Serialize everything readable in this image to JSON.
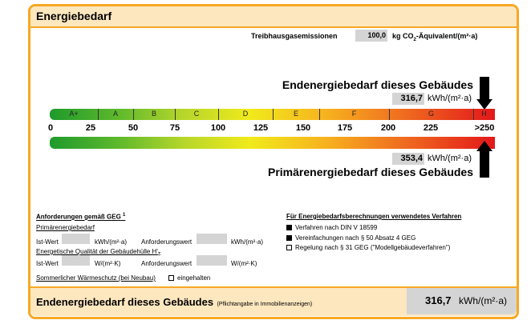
{
  "header": {
    "title": "Energiebedarf"
  },
  "emissions": {
    "label": "Treibhausgasemissionen",
    "value": "100,0",
    "unit": "kg CO",
    "unit_sub": "2",
    "unit_rest": "-Äquivalent/(m²·a)"
  },
  "end_energy": {
    "title": "Endenergiebedarf dieses Gebäudes",
    "value": "316,7",
    "unit": "kWh/(m²·a)"
  },
  "scale": {
    "classes": [
      "A+",
      "A",
      "B",
      "C",
      "D",
      "E",
      "F",
      "G",
      "H"
    ],
    "ticks": [
      "0",
      "25",
      "50",
      "75",
      "100",
      "125",
      "150",
      "175",
      "200",
      "225",
      ">250"
    ]
  },
  "primary_energy": {
    "value": "353,4",
    "unit": "kWh/(m²·a)",
    "title": "Primärenergiebedarf dieses Gebäudes"
  },
  "requirements": {
    "title": "Anforderungen gemäß GEG",
    "title_sup": "1",
    "primary": {
      "title": "Primärenergiebedarf",
      "actual": "Ist-Wert",
      "actual_unit": "kWh/(m²·a)",
      "required": "Anforderungswert",
      "required_unit": "kWh/(m²·a)"
    },
    "envelope": {
      "title": "Energetische Qualität der Gebäudehülle H'",
      "title_sub": "T",
      "actual": "Ist-Wert",
      "actual_unit": "W/(m²·K)",
      "required": "Anforderungswert",
      "required_unit": "W/(m²·K)"
    },
    "summer": {
      "title": "Sommerlicher Wärmeschutz (bei Neubau)",
      "option": "eingehalten",
      "checked": false
    }
  },
  "methods": {
    "title": "Für Energiebedarfsberechnungen verwendetes Verfahren",
    "items": [
      {
        "label": "Verfahren nach DIN V 18599",
        "checked": true
      },
      {
        "label": "Vereinfachungen nach § 50 Absatz 4 GEG",
        "checked": true
      },
      {
        "label": "Regelung nach § 31 GEG (\"Modellgebäudeverfahren\")",
        "checked": false
      }
    ]
  },
  "footer": {
    "title": "Endenergiebedarf dieses Gebäudes",
    "note": "(Pflichtangabe in Immobilienanzeigen)",
    "value": "316,7",
    "unit": "kWh/(m²·a)"
  }
}
